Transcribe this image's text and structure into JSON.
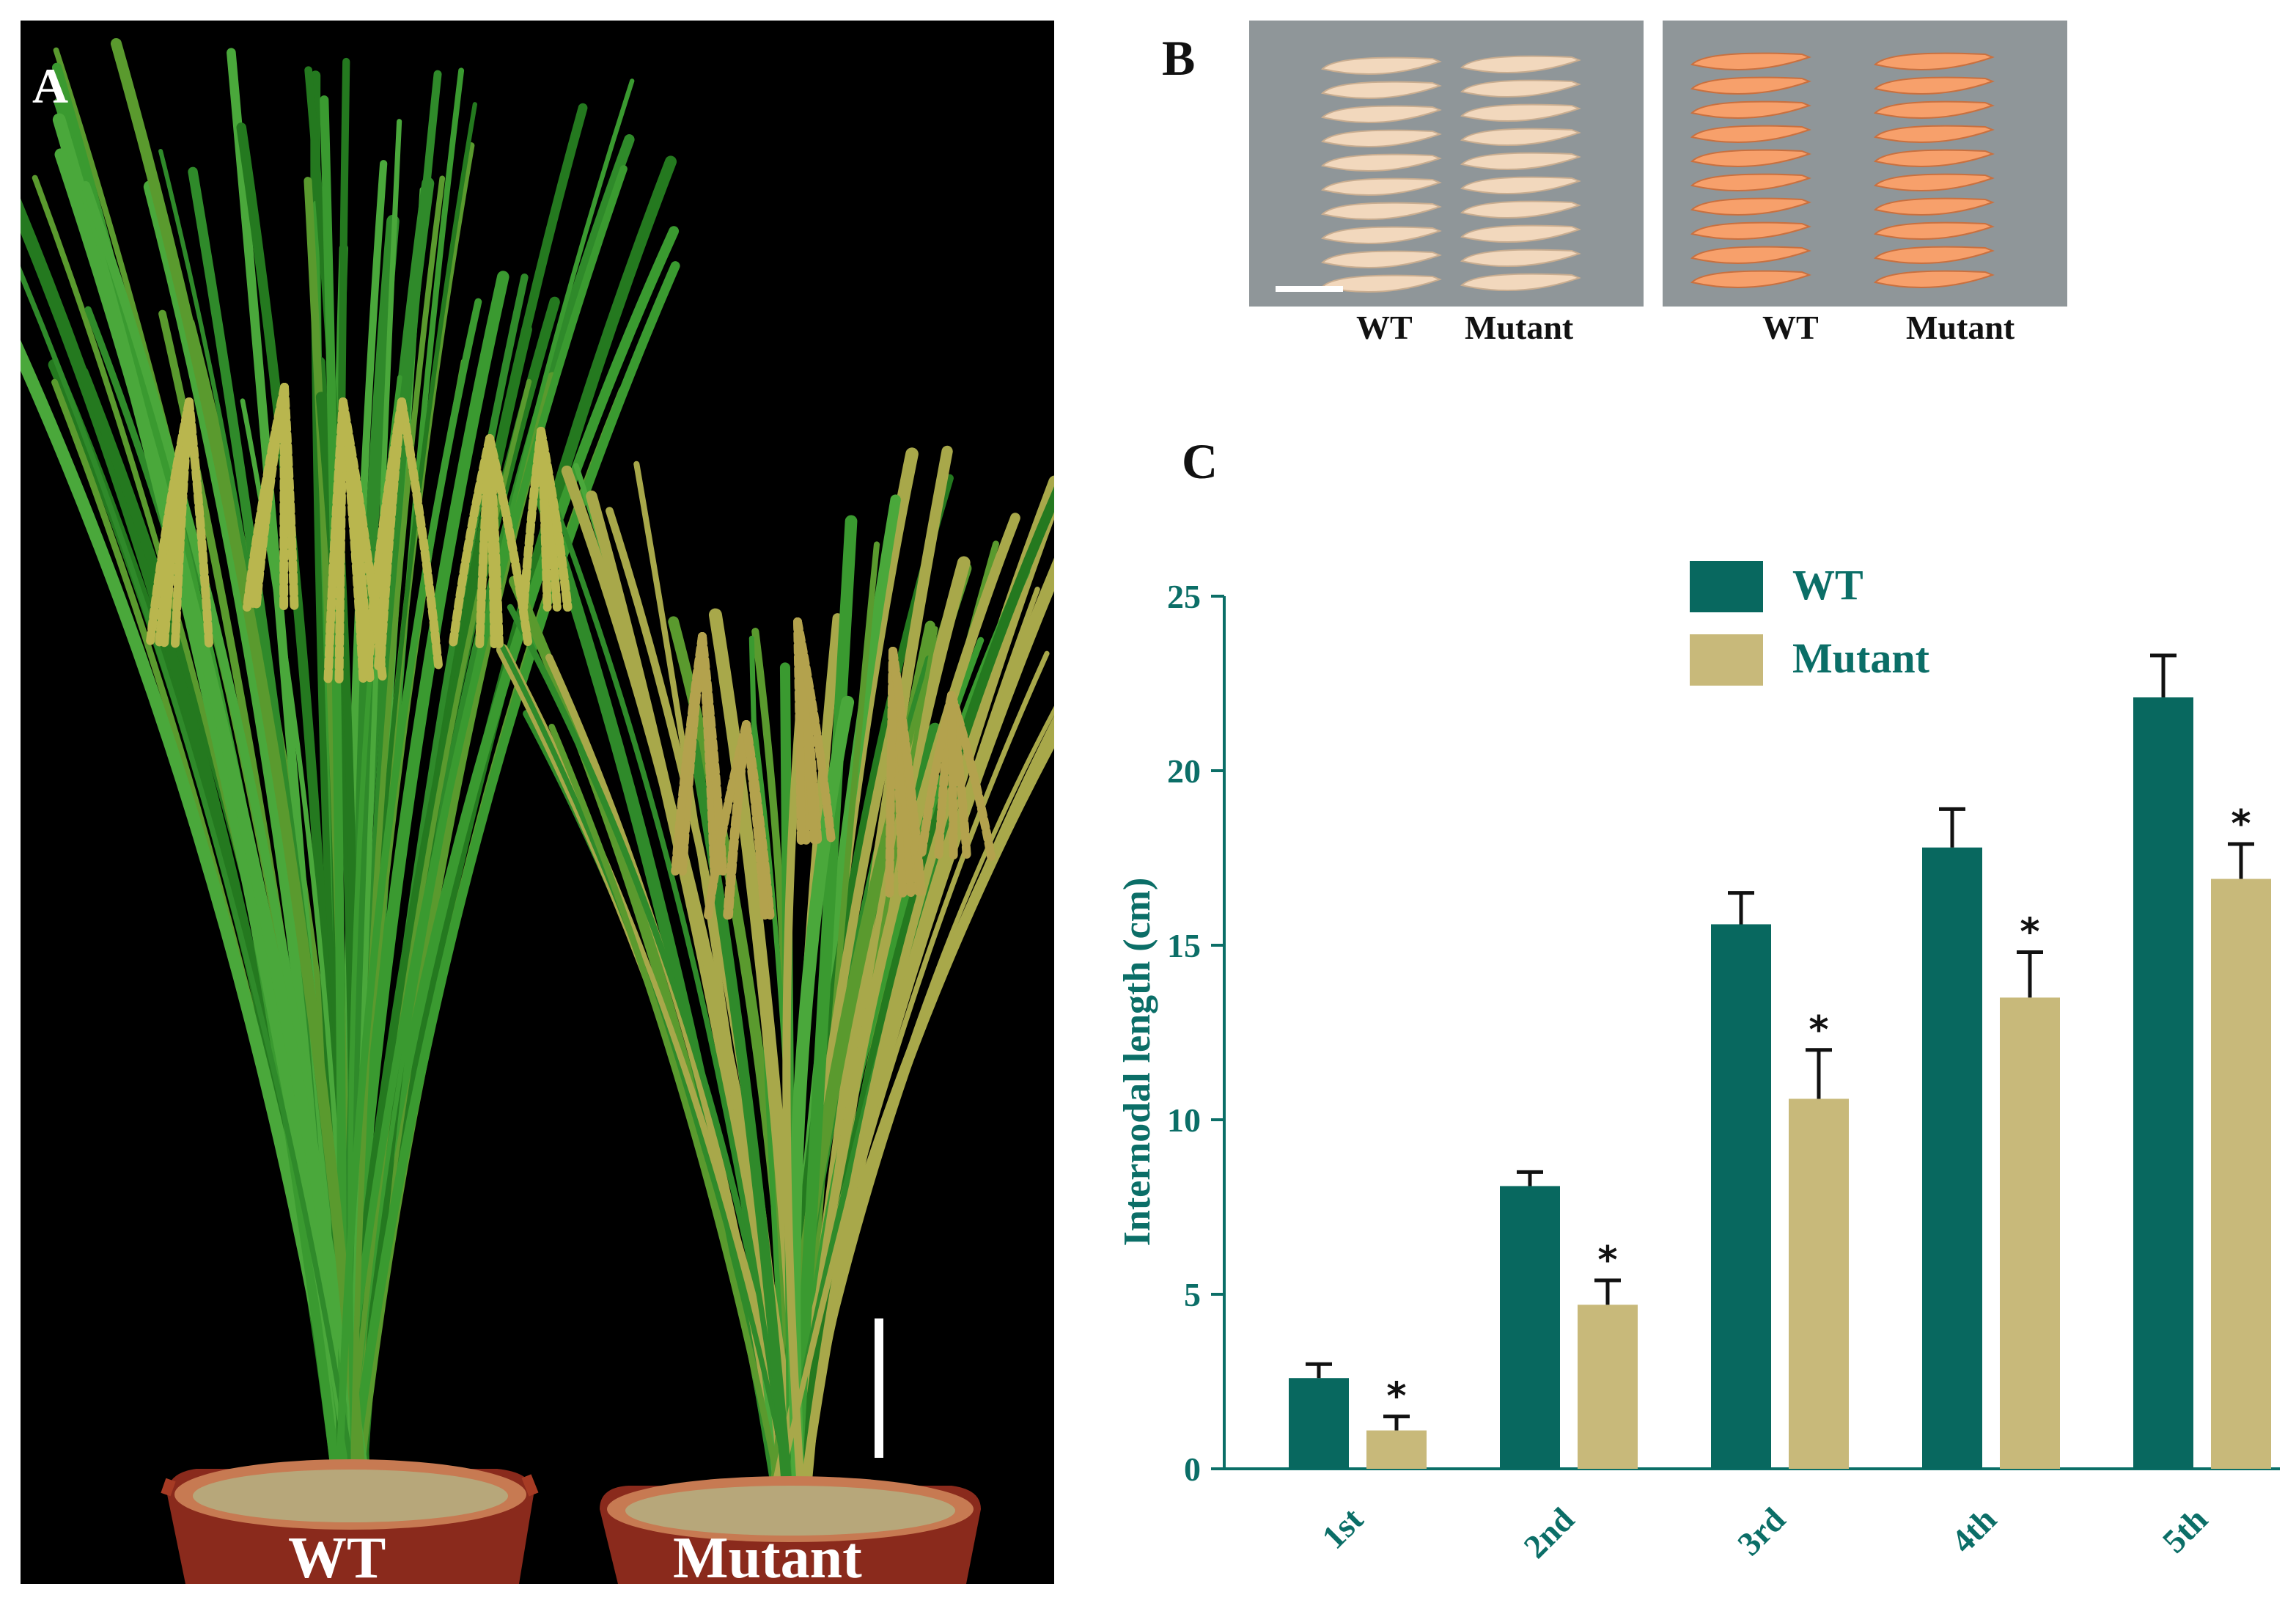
{
  "panel_a": {
    "letter": "A",
    "labels": {
      "wt": "WT",
      "mutant": "Mutant"
    }
  },
  "panel_b": {
    "letter": "B",
    "left_box": {
      "wt": "WT",
      "mutant": "Mutant"
    },
    "right_box": {
      "wt": "WT",
      "mutant": "Mutant"
    }
  },
  "panel_c": {
    "letter": "C"
  },
  "colors": {
    "wt": "#08685f",
    "mutant": "#c8b97a",
    "axis": "#0b6e67"
  },
  "chart_data": {
    "type": "bar",
    "title": "",
    "xlabel": "",
    "ylabel": "Internodal length (cm)",
    "categories": [
      "1st",
      "2nd",
      "3rd",
      "4th",
      "5th"
    ],
    "ylim": [
      0,
      25
    ],
    "yticks": [
      0,
      5,
      10,
      15,
      20,
      25
    ],
    "legend_position": "top-left",
    "series": [
      {
        "name": "WT",
        "values": [
          2.6,
          8.1,
          15.6,
          17.8,
          22.1
        ],
        "errors": [
          0.4,
          0.4,
          0.9,
          1.1,
          1.2
        ]
      },
      {
        "name": "Mutant",
        "values": [
          1.1,
          4.7,
          10.6,
          13.5,
          16.9
        ],
        "errors": [
          0.4,
          0.7,
          1.4,
          1.3,
          1.0
        ]
      }
    ],
    "significance_marker": "*",
    "significant": [
      true,
      true,
      true,
      true,
      true
    ]
  }
}
